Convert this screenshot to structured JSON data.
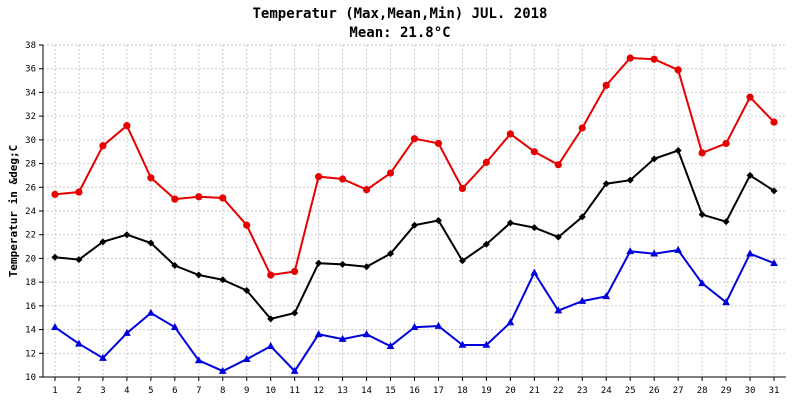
{
  "chart_data": {
    "type": "line",
    "title": "Temperatur (Max,Mean,Min) JUL. 2018",
    "subtitle": "Mean: 21.8°C",
    "xlabel": "",
    "ylabel": "Temperatur in &deg;C",
    "x": [
      1,
      2,
      3,
      4,
      5,
      6,
      7,
      8,
      9,
      10,
      11,
      12,
      13,
      14,
      15,
      16,
      17,
      18,
      19,
      20,
      21,
      22,
      23,
      24,
      25,
      26,
      27,
      28,
      29,
      30,
      31
    ],
    "ylim": [
      10,
      38
    ],
    "yticks": [
      10,
      12,
      14,
      16,
      18,
      20,
      22,
      24,
      26,
      28,
      30,
      32,
      34,
      36,
      38
    ],
    "grid": true,
    "legend": "none",
    "series": [
      {
        "color": "#e60000",
        "marker": "circle",
        "values": [
          25.4,
          25.6,
          29.5,
          31.2,
          26.8,
          25.0,
          25.2,
          25.1,
          22.8,
          18.6,
          18.9,
          26.9,
          26.7,
          25.8,
          27.2,
          30.1,
          29.7,
          25.9,
          28.1,
          30.5,
          29.0,
          27.9,
          31.0,
          34.6,
          36.9,
          36.8,
          35.9,
          28.9,
          29.7,
          33.6,
          31.5
        ]
      },
      {
        "color": "#000000",
        "marker": "diamond",
        "values": [
          20.1,
          19.9,
          21.4,
          22.0,
          21.3,
          19.4,
          18.6,
          18.2,
          17.3,
          14.9,
          15.4,
          19.6,
          19.5,
          19.3,
          20.4,
          22.8,
          23.2,
          19.8,
          21.2,
          23.0,
          22.6,
          21.8,
          23.5,
          26.3,
          26.6,
          28.4,
          29.1,
          23.7,
          23.1,
          27.0,
          25.7
        ]
      },
      {
        "color": "#0000dd",
        "marker": "triangle",
        "values": [
          14.2,
          12.8,
          11.6,
          13.7,
          15.4,
          14.2,
          11.4,
          10.5,
          11.5,
          12.6,
          10.5,
          13.6,
          13.2,
          13.6,
          12.6,
          14.2,
          14.3,
          12.7,
          12.7,
          14.6,
          18.8,
          15.6,
          16.4,
          16.8,
          20.6,
          20.4,
          20.7,
          17.9,
          16.3,
          20.4,
          19.6
        ]
      }
    ]
  }
}
